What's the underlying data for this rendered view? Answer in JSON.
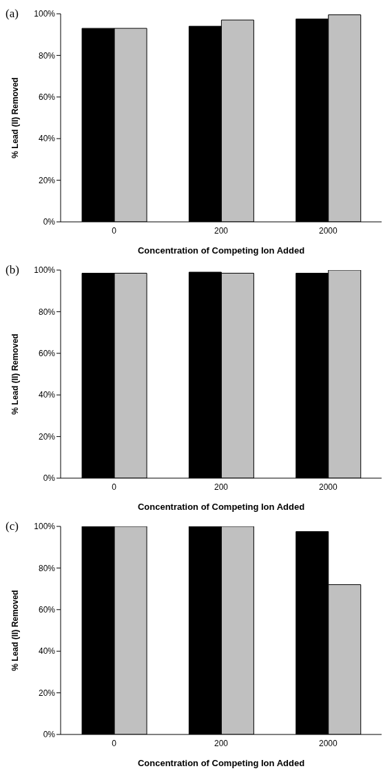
{
  "chart_data": [
    {
      "type": "bar",
      "title": "(a)",
      "xlabel": "Concentration of Competing Ion Added",
      "ylabel": "% Lead (II) Removed",
      "categories": [
        "0",
        "200",
        "2000"
      ],
      "series": [
        {
          "color": "#000000",
          "values": [
            93,
            94,
            97.5
          ]
        },
        {
          "color": "#c0c0c0",
          "values": [
            93,
            97,
            99.5
          ]
        }
      ],
      "ylim": [
        0,
        100
      ],
      "yticks": [
        {
          "value": 0,
          "label": "0%"
        },
        {
          "value": 20,
          "label": "20%"
        },
        {
          "value": 40,
          "label": "40%"
        },
        {
          "value": 60,
          "label": "60%"
        },
        {
          "value": 80,
          "label": "80%"
        },
        {
          "value": 100,
          "label": "100%"
        }
      ],
      "grid": false
    },
    {
      "type": "bar",
      "title": "(b)",
      "xlabel": "Concentration of Competing Ion Added",
      "ylabel": "% Lead (II) Removed",
      "categories": [
        "0",
        "200",
        "2000"
      ],
      "series": [
        {
          "color": "#000000",
          "values": [
            98.5,
            99,
            98.5
          ]
        },
        {
          "color": "#c0c0c0",
          "values": [
            98.5,
            98.5,
            100
          ]
        }
      ],
      "ylim": [
        0,
        100
      ],
      "yticks": [
        {
          "value": 0,
          "label": "0%"
        },
        {
          "value": 20,
          "label": "20%"
        },
        {
          "value": 40,
          "label": "40%"
        },
        {
          "value": 60,
          "label": "60%"
        },
        {
          "value": 80,
          "label": "80%"
        },
        {
          "value": 100,
          "label": "100%"
        }
      ],
      "grid": false
    },
    {
      "type": "bar",
      "title": "(c)",
      "xlabel": "Concentration of Competing Ion Added",
      "ylabel": "% Lead (II) Removed",
      "categories": [
        "0",
        "200",
        "2000"
      ],
      "series": [
        {
          "color": "#000000",
          "values": [
            100,
            100,
            97.5
          ]
        },
        {
          "color": "#c0c0c0",
          "values": [
            100,
            100,
            72
          ]
        }
      ],
      "ylim": [
        0,
        100
      ],
      "yticks": [
        {
          "value": 0,
          "label": "0%"
        },
        {
          "value": 20,
          "label": "20%"
        },
        {
          "value": 40,
          "label": "40%"
        },
        {
          "value": 60,
          "label": "60%"
        },
        {
          "value": 80,
          "label": "80%"
        },
        {
          "value": 100,
          "label": "100%"
        }
      ],
      "grid": false
    }
  ]
}
